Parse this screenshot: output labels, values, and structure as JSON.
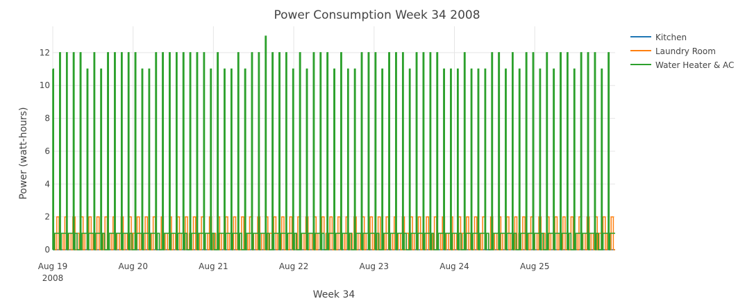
{
  "chart_data": {
    "type": "line",
    "title": "Power Consumption Week 34 2008",
    "xlabel": "Week 34",
    "ylabel": "Power (watt-hours)",
    "ylim": [
      0,
      13.6
    ],
    "yticks": [
      0,
      2,
      4,
      6,
      8,
      10,
      12
    ],
    "x_ticks": [
      {
        "label": "Aug 19",
        "sublabel": "2008",
        "day": 0
      },
      {
        "label": "Aug 20",
        "day": 1
      },
      {
        "label": "Aug 21",
        "day": 2
      },
      {
        "label": "Aug 22",
        "day": 3
      },
      {
        "label": "Aug 23",
        "day": 4
      },
      {
        "label": "Aug 24",
        "day": 5
      },
      {
        "label": "Aug 25",
        "day": 6
      }
    ],
    "grid": true,
    "legend_position": "top-right",
    "series": [
      {
        "name": "Kitchen",
        "color": "#1f77b4",
        "values": [
          0
        ]
      },
      {
        "name": "Laundry Room",
        "color": "#ff7f0e",
        "values": [
          1,
          2,
          1,
          2,
          1,
          2,
          1,
          2,
          1,
          2,
          1,
          2,
          1,
          2,
          1,
          2,
          1,
          2,
          1,
          2,
          1,
          2,
          1,
          2,
          1,
          2,
          1,
          2,
          1,
          2,
          1,
          2,
          1,
          2,
          1,
          2,
          1,
          2,
          1,
          2,
          1,
          2,
          1,
          2,
          1,
          2,
          1,
          2,
          1,
          2,
          1,
          2,
          1,
          2,
          1,
          2,
          1,
          2,
          1,
          2,
          1,
          2,
          1,
          2,
          1,
          2,
          1,
          2,
          1,
          2,
          1,
          2,
          1,
          2,
          1,
          2,
          1,
          2,
          1,
          2,
          1,
          2,
          1,
          2,
          1,
          2,
          1,
          2,
          1,
          2,
          1,
          2,
          1,
          2,
          1,
          2,
          1,
          2,
          1,
          2,
          1,
          2,
          1,
          2,
          1,
          2,
          1,
          2,
          1,
          2,
          1,
          2,
          1,
          2,
          1,
          2,
          1,
          2,
          1,
          2,
          1,
          2,
          1,
          2,
          1,
          2,
          1,
          2,
          1,
          2,
          1,
          2,
          1,
          2,
          1,
          2,
          1,
          2,
          1,
          2
        ]
      },
      {
        "name": "Water Heater & AC",
        "color": "#2ca02c",
        "values": [
          11,
          12,
          12,
          12,
          12,
          11,
          12,
          11,
          12,
          12,
          12,
          12,
          12,
          11,
          11,
          12,
          12,
          12,
          12,
          12,
          12,
          12,
          12,
          11,
          12,
          11,
          11,
          12,
          11,
          12,
          12,
          13,
          12,
          12,
          12,
          11,
          12,
          11,
          12,
          12,
          12,
          11,
          12,
          11,
          11,
          12,
          12,
          12,
          11,
          12,
          12,
          12,
          11,
          12,
          12,
          12,
          12,
          11,
          11,
          11,
          12,
          11,
          11,
          11,
          12,
          12,
          11,
          12,
          11,
          12,
          12,
          11,
          12,
          11,
          12,
          12,
          11,
          12,
          12,
          12,
          11,
          12
        ]
      }
    ]
  }
}
